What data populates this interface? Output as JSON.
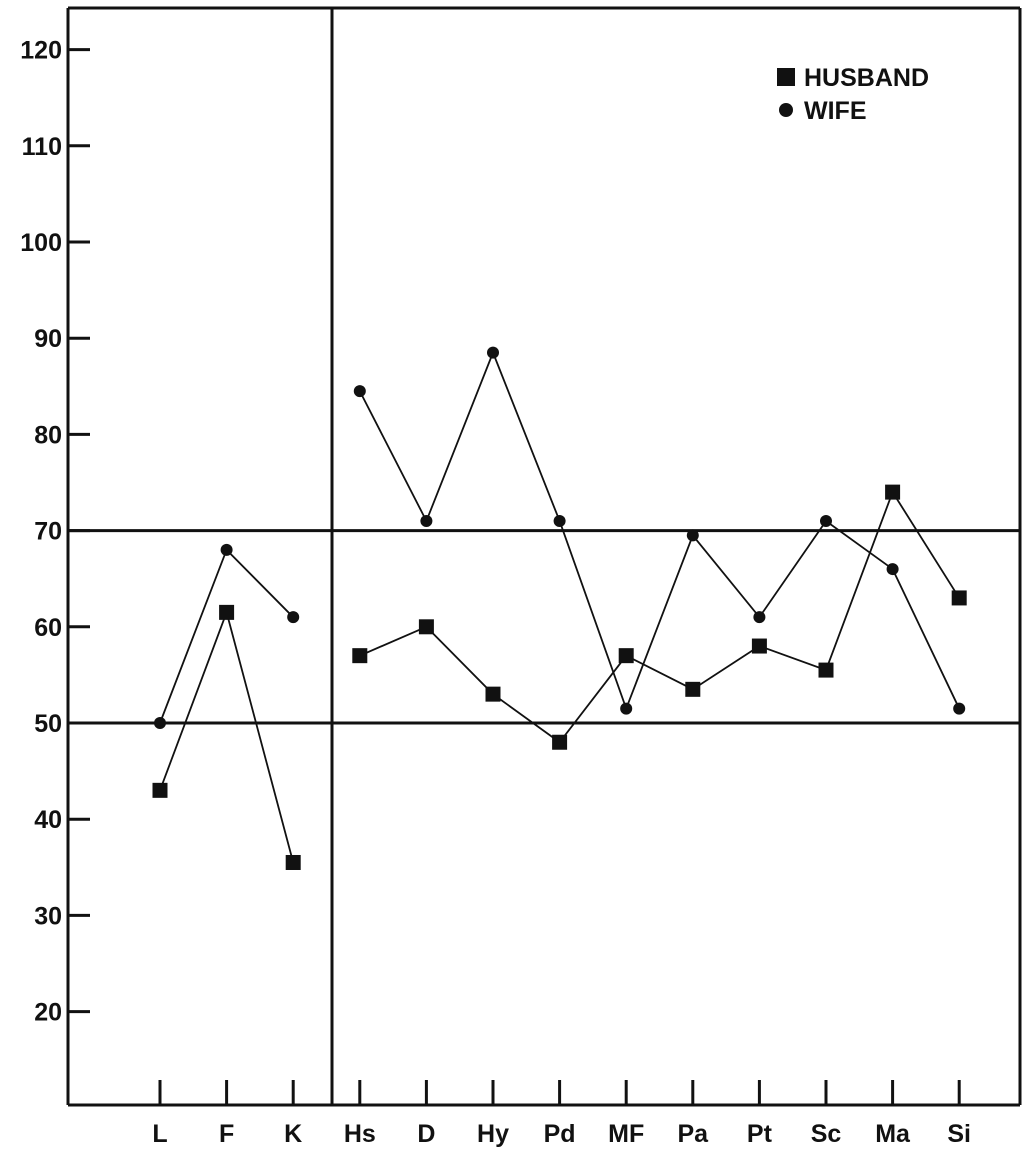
{
  "chart_data": {
    "type": "line",
    "title": "",
    "xlabel": "",
    "ylabel": "",
    "y_ticks": [
      20,
      30,
      40,
      50,
      60,
      70,
      80,
      90,
      100,
      110,
      120
    ],
    "ylim": [
      10,
      125
    ],
    "validity_categories": [
      "L",
      "F",
      "K"
    ],
    "clinical_categories": [
      "Hs",
      "D",
      "Hy",
      "Pd",
      "MF",
      "Pa",
      "Pt",
      "Sc",
      "Ma",
      "Si"
    ],
    "categories": [
      "L",
      "F",
      "K",
      "Hs",
      "D",
      "Hy",
      "Pd",
      "MF",
      "Pa",
      "Pt",
      "Sc",
      "Ma",
      "Si"
    ],
    "reference_lines": [
      50,
      70
    ],
    "grid": false,
    "legend_position": "top-right",
    "series": [
      {
        "name": "HUSBAND",
        "marker": "square",
        "color": "#111111",
        "values": [
          43,
          61.5,
          35.5,
          57,
          60,
          53,
          48,
          57,
          53.5,
          58,
          55.5,
          74,
          63
        ]
      },
      {
        "name": "WIFE",
        "marker": "circle",
        "color": "#111111",
        "values": [
          50,
          68,
          61,
          84.5,
          71,
          88.5,
          71,
          51.5,
          69.5,
          61,
          71,
          66,
          51.5
        ]
      }
    ]
  }
}
